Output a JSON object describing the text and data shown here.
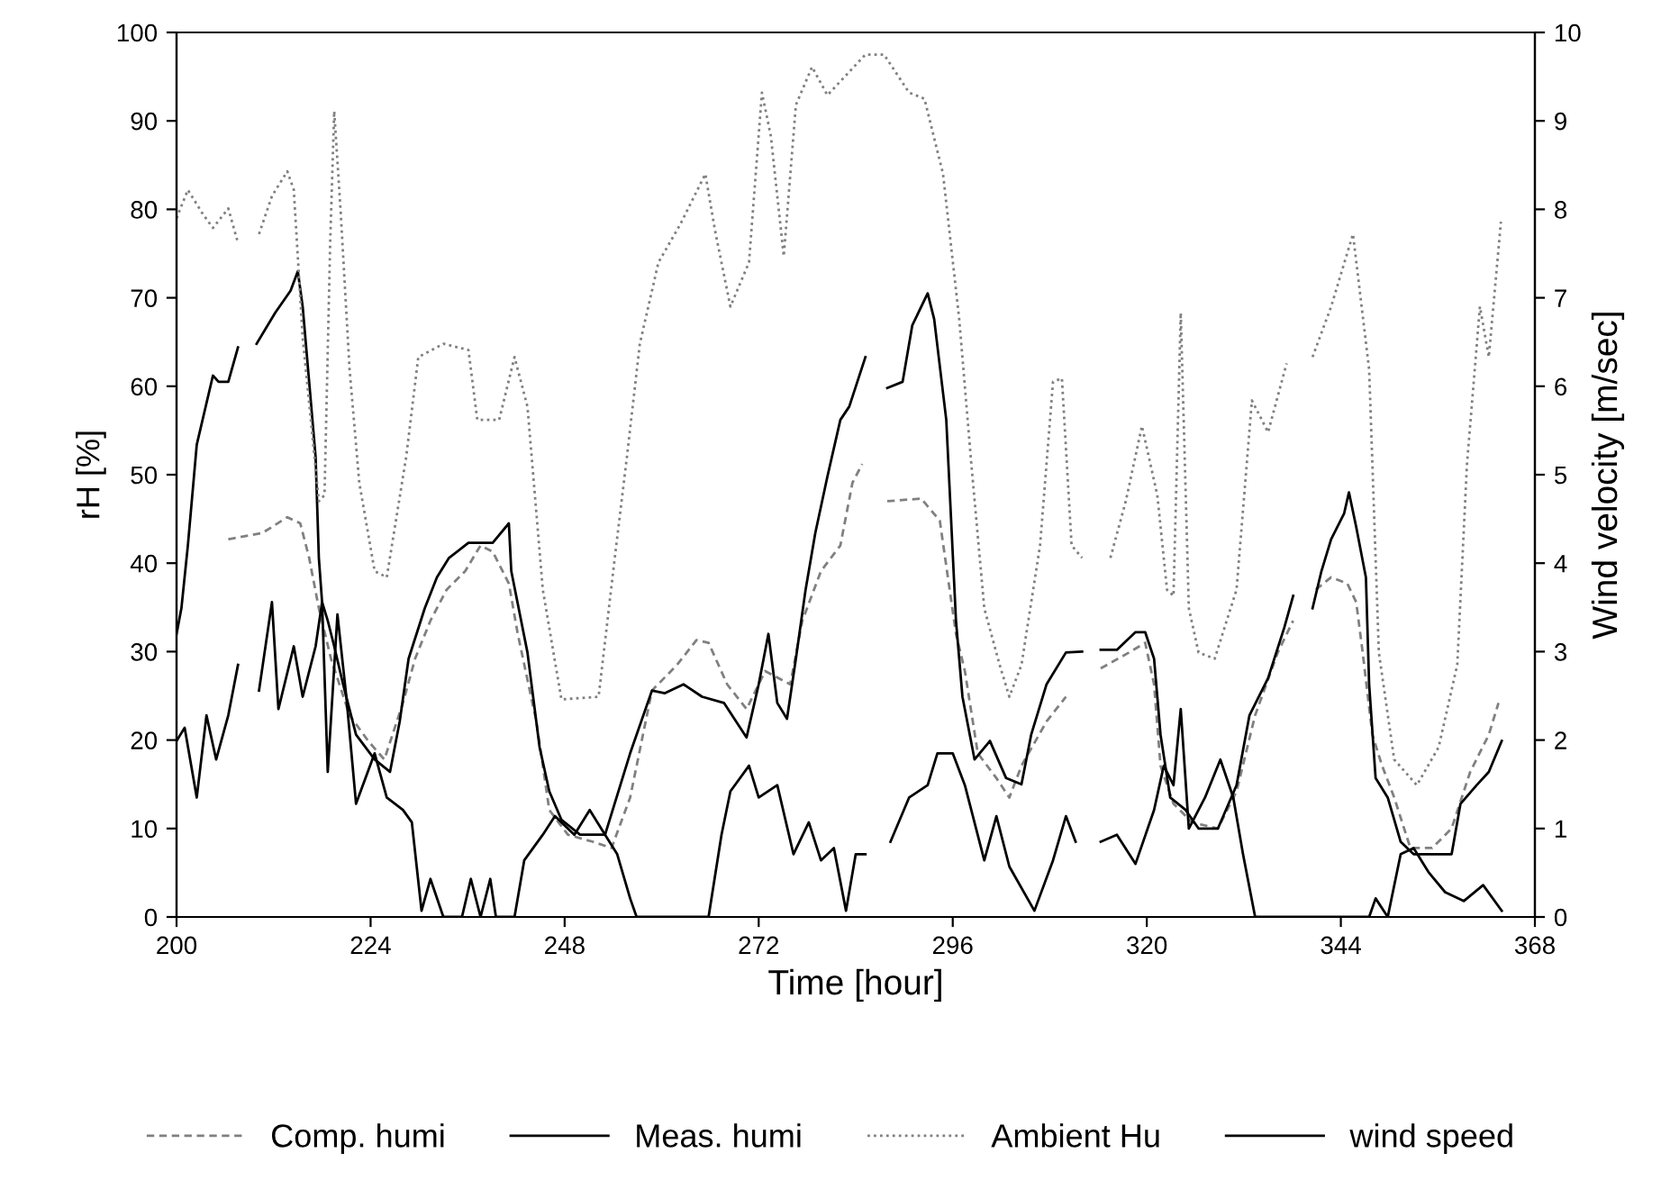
{
  "chart_data": {
    "type": "line",
    "xlabel": "Time [hour]",
    "ylabel": "rH [%]",
    "y2label": "Wind velocity [m/sec]",
    "xlim": [
      200,
      368
    ],
    "xticks": [
      200,
      224,
      248,
      272,
      296,
      320,
      344,
      368
    ],
    "ylim": [
      0,
      100
    ],
    "yticks": [
      0,
      10,
      20,
      30,
      40,
      50,
      60,
      70,
      80,
      90,
      100
    ],
    "y2lim": [
      0,
      10
    ],
    "y2ticks": [
      0,
      1,
      2,
      3,
      4,
      5,
      6,
      7,
      8,
      9,
      10
    ],
    "grid": false,
    "legend": "bottom",
    "marker": "none",
    "series": [
      {
        "name": "Comp. humi",
        "color": "#808080",
        "line_style": "dashed",
        "x": [
          206.4,
          210.6,
          213.7,
          215.3,
          216.4,
          217.6,
          219.1,
          221.4,
          223.7,
          225.7,
          228.0,
          229.5,
          231.4,
          233.4,
          235.7,
          237.6,
          239.1,
          241.1,
          242.2,
          244.5,
          246.1,
          248.4,
          251.5,
          253.8,
          256.1,
          258.8,
          261.9,
          264.3,
          265.8,
          268.1,
          270.5,
          272.8,
          275.9,
          277.4,
          279.7,
          282.1,
          283.6,
          284.8,
          286.3,
          287.9,
          292.1,
          294.4,
          296.4,
          297.5,
          299.1,
          301.4,
          303.0,
          304.5,
          307.6,
          310.0,
          312.5,
          314.3,
          317.8,
          319.8,
          320.9,
          321.7,
          323.3,
          325.6,
          328.8,
          331.1,
          333.4,
          336.2,
          338.1,
          339.5,
          340.9,
          342.8,
          344.8,
          345.9,
          346.7,
          347.9,
          349.1,
          350.6,
          352.6,
          355.3,
          357.7,
          360.0,
          362.3,
          363.5
        ],
        "values": [
          42.7,
          43.4,
          45.2,
          44.5,
          40.6,
          34.9,
          29.2,
          22.8,
          19.9,
          17.8,
          24.2,
          29.2,
          33.5,
          37.0,
          39.1,
          42.0,
          41.3,
          37.7,
          32.0,
          22.1,
          12.1,
          9.3,
          8.5,
          7.8,
          13.5,
          25.6,
          28.5,
          31.3,
          31.0,
          26.3,
          23.5,
          27.8,
          26.3,
          33.5,
          39.1,
          42.0,
          49.1,
          51.2,
          null,
          47.0,
          47.3,
          44.8,
          32.0,
          27.8,
          18.5,
          15.7,
          13.5,
          17.1,
          22.1,
          24.9,
          null,
          28.1,
          29.9,
          31.0,
          26.3,
          17.1,
          12.8,
          10.7,
          10.0,
          14.2,
          22.8,
          29.9,
          33.5,
          null,
          37.0,
          38.4,
          37.7,
          35.6,
          29.9,
          20.6,
          17.1,
          13.5,
          7.8,
          7.8,
          10.0,
          16.4,
          20.6,
          24.2
        ]
      },
      {
        "name": "Meas. humi",
        "color": "#000000",
        "line_style": "solid",
        "x": [
          200.0,
          200.6,
          201.4,
          202.5,
          204.5,
          205.2,
          206.4,
          207.6,
          208.7,
          209.9,
          212.2,
          214.1,
          215.0,
          215.6,
          216.4,
          217.2,
          217.6,
          218.0,
          218.7,
          219.5,
          220.6,
          222.2,
          224.5,
          226.4,
          227.6,
          228.7,
          230.7,
          232.2,
          233.7,
          236.1,
          239.1,
          241.1,
          241.4,
          243.4,
          244.9,
          246.1,
          247.6,
          249.9,
          253.0,
          256.1,
          258.8,
          260.4,
          262.7,
          265.0,
          267.7,
          270.5,
          272.0,
          273.2,
          274.3,
          275.5,
          276.6,
          277.8,
          279.0,
          280.5,
          282.1,
          283.2,
          285.2,
          286.5,
          287.9,
          289.8,
          291.0,
          292.9,
          293.7,
          295.2,
          296.4,
          297.2,
          298.7,
          300.6,
          302.6,
          304.5,
          305.7,
          307.6,
          310.0,
          312.0,
          313.2,
          314.3,
          316.3,
          318.6,
          319.8,
          320.9,
          321.7,
          322.9,
          324.8,
          326.4,
          328.8,
          331.1,
          332.7,
          335.0,
          337.0,
          338.1,
          339.3,
          340.5,
          341.6,
          342.8,
          344.4,
          345.0,
          345.9,
          347.1,
          347.5,
          348.3,
          349.8,
          351.4,
          353.0,
          355.3,
          357.7,
          358.8,
          360.8,
          362.3,
          363.9
        ],
        "values": [
          32.0,
          34.9,
          42.0,
          53.4,
          61.2,
          60.5,
          60.5,
          64.4,
          null,
          64.8,
          68.3,
          70.8,
          73.0,
          69.0,
          60.5,
          52.0,
          40.6,
          35.6,
          33.5,
          30.6,
          26.3,
          20.6,
          17.8,
          16.4,
          22.1,
          29.2,
          34.9,
          38.4,
          40.6,
          42.3,
          42.3,
          44.5,
          39.1,
          29.9,
          19.2,
          14.2,
          11.0,
          9.3,
          9.3,
          18.5,
          25.6,
          25.3,
          26.3,
          24.9,
          24.2,
          20.3,
          26.3,
          32.0,
          24.2,
          22.4,
          29.2,
          37.0,
          43.4,
          49.8,
          56.2,
          57.7,
          63.3,
          null,
          59.8,
          60.5,
          66.9,
          70.5,
          67.6,
          56.2,
          33.5,
          24.9,
          17.8,
          19.9,
          15.7,
          15.0,
          20.6,
          26.3,
          29.9,
          30.0,
          null,
          30.2,
          30.2,
          32.2,
          32.2,
          29.2,
          20.6,
          13.5,
          12.1,
          10.0,
          10.0,
          14.9,
          22.8,
          27.0,
          32.7,
          36.3,
          null,
          34.9,
          39.1,
          42.7,
          45.6,
          48.0,
          44.1,
          38.4,
          26.3,
          15.7,
          13.5,
          8.5,
          7.1,
          7.1,
          7.1,
          12.8,
          14.9,
          16.4,
          19.9
        ]
      },
      {
        "name": "Ambient Hu",
        "color": "#808080",
        "line_style": "dotted",
        "x": [
          200.0,
          201.4,
          203.3,
          204.5,
          206.4,
          207.6,
          208.9,
          210.2,
          211.8,
          213.7,
          214.5,
          215.6,
          217.6,
          218.3,
          219.0,
          219.5,
          220.3,
          221.4,
          222.6,
          224.5,
          226.0,
          228.4,
          229.9,
          233.0,
          236.1,
          237.2,
          239.9,
          241.8,
          243.4,
          245.3,
          247.6,
          252.2,
          254.2,
          255.7,
          257.3,
          259.6,
          262.3,
          265.4,
          266.6,
          268.5,
          270.8,
          272.4,
          273.5,
          275.1,
          276.6,
          278.6,
          280.5,
          285.2,
          287.5,
          290.6,
          292.5,
          294.8,
          296.8,
          298.3,
          299.9,
          301.8,
          303.0,
          304.5,
          306.8,
          308.4,
          309.5,
          310.7,
          312.0,
          313.7,
          315.5,
          317.4,
          319.4,
          321.3,
          322.5,
          323.3,
          324.2,
          325.2,
          326.4,
          328.4,
          331.1,
          333.0,
          335.0,
          337.3,
          339.0,
          340.5,
          342.8,
          345.5,
          347.5,
          348.7,
          350.6,
          353.4,
          356.1,
          358.4,
          359.6,
          361.2,
          362.3,
          363.8
        ],
        "values": [
          79.0,
          82.2,
          79.4,
          77.9,
          80.1,
          76.2,
          null,
          77.2,
          81.5,
          84.3,
          82.2,
          65.5,
          47.0,
          47.7,
          76.2,
          91.1,
          79.7,
          61.9,
          49.1,
          39.1,
          38.4,
          52.0,
          63.3,
          64.8,
          64.1,
          56.2,
          56.2,
          63.3,
          57.7,
          37.0,
          24.6,
          24.9,
          40.6,
          52.0,
          64.8,
          74.0,
          78.3,
          84.0,
          77.6,
          69.0,
          74.0,
          93.2,
          88.3,
          74.7,
          91.8,
          96.1,
          92.9,
          97.5,
          97.5,
          93.2,
          92.5,
          84.0,
          67.6,
          51.2,
          34.9,
          28.5,
          24.9,
          28.5,
          42.0,
          60.5,
          60.9,
          42.0,
          40.6,
          null,
          40.6,
          47.0,
          55.5,
          47.7,
          37.0,
          36.3,
          68.3,
          34.9,
          29.9,
          29.2,
          37.0,
          58.4,
          54.8,
          62.6,
          null,
          63.3,
          69.0,
          77.2,
          61.9,
          29.9,
          17.8,
          14.9,
          19.2,
          28.5,
          51.2,
          69.0,
          63.3,
          78.6
        ]
      },
      {
        "name": "wind speed",
        "color": "#000000",
        "line_style": "solid",
        "axis": "y2",
        "x": [
          200.0,
          201.0,
          202.5,
          203.7,
          204.9,
          206.4,
          207.6,
          208.9,
          210.2,
          211.8,
          212.6,
          214.5,
          215.6,
          217.2,
          218.0,
          218.7,
          219.9,
          221.0,
          222.2,
          224.5,
          226.0,
          228.0,
          229.1,
          230.3,
          231.4,
          233.0,
          235.3,
          236.4,
          237.6,
          238.8,
          239.5,
          241.8,
          243.0,
          245.3,
          246.8,
          249.2,
          251.1,
          253.0,
          254.5,
          256.1,
          256.9,
          265.8,
          267.4,
          268.5,
          270.8,
          272.0,
          274.3,
          276.3,
          278.2,
          279.7,
          281.3,
          282.8,
          284.0,
          285.2,
          286.7,
          288.3,
          290.6,
          292.9,
          294.1,
          296.0,
          297.5,
          299.9,
          301.4,
          303.0,
          306.1,
          308.4,
          310.0,
          311.2,
          312.8,
          314.3,
          316.3,
          318.6,
          320.9,
          322.1,
          323.3,
          324.2,
          325.2,
          327.2,
          329.1,
          330.7,
          331.9,
          333.4,
          347.5,
          348.3,
          349.8,
          351.4,
          353.0,
          354.9,
          356.9,
          359.2,
          361.6,
          363.9
        ],
        "values": [
          1.99,
          2.14,
          1.35,
          2.28,
          1.78,
          2.28,
          2.85,
          null,
          2.56,
          3.56,
          2.35,
          3.06,
          2.49,
          3.06,
          3.56,
          1.64,
          3.42,
          2.49,
          1.28,
          1.85,
          1.35,
          1.21,
          1.07,
          0.07,
          0.43,
          0,
          0,
          0.43,
          0,
          0.43,
          0,
          0,
          0.64,
          0.93,
          1.14,
          0.93,
          1.21,
          0.93,
          0.71,
          0.21,
          0,
          0,
          0.93,
          1.42,
          1.71,
          1.35,
          1.49,
          0.71,
          1.07,
          0.64,
          0.78,
          0.07,
          0.71,
          0.71,
          null,
          0.85,
          1.35,
          1.49,
          1.85,
          1.85,
          1.49,
          0.64,
          1.14,
          0.57,
          0.07,
          0.64,
          1.14,
          0.85,
          null,
          0.85,
          0.93,
          0.6,
          1.21,
          1.71,
          1.49,
          2.35,
          1.0,
          1.35,
          1.78,
          1.35,
          0.71,
          0,
          0,
          0.21,
          0,
          0.71,
          0.78,
          0.5,
          0.28,
          0.18,
          0.36,
          0.07
        ]
      }
    ]
  }
}
